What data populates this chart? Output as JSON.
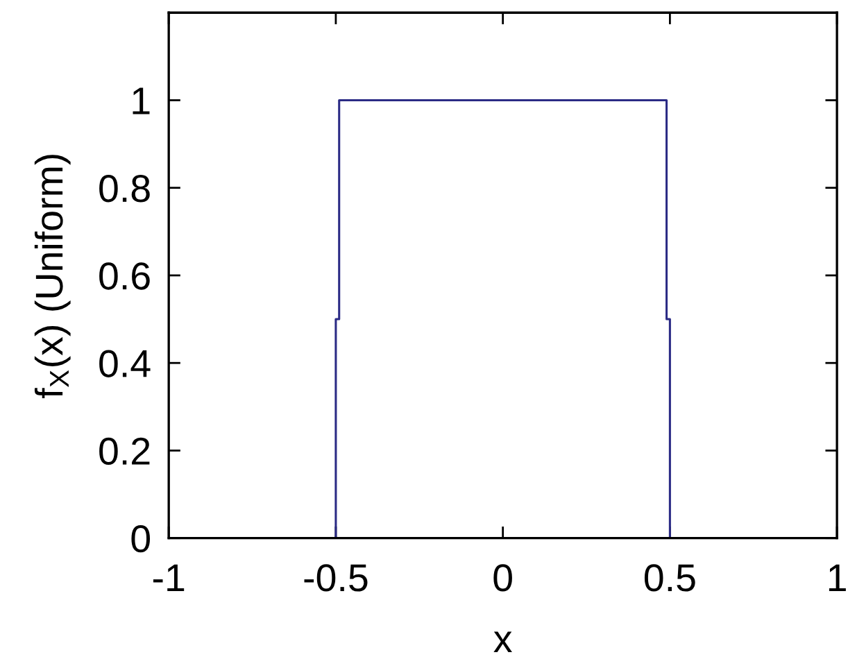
{
  "chart_data": {
    "type": "line",
    "xlabel": "x",
    "ylabel": "f$_{X}$(x) (Uniform)",
    "x": [
      -1,
      -0.5,
      -0.5,
      -0.49,
      -0.49,
      0.49,
      0.49,
      0.5,
      0.5,
      1
    ],
    "series": [
      {
        "color": "#2b2b85",
        "values": [
          0,
          0,
          0.5,
          0.5,
          1,
          1,
          0.5,
          0.5,
          0,
          0
        ]
      }
    ],
    "xlim": [
      -1,
      1
    ],
    "ylim": [
      0,
      1.2
    ],
    "xticks": [
      -1,
      -0.5,
      0,
      0.5,
      1
    ],
    "yticks": [
      0,
      0.2,
      0.4,
      0.6,
      0.8,
      1
    ],
    "grid": false,
    "marker": "none",
    "line_style": "solid"
  }
}
